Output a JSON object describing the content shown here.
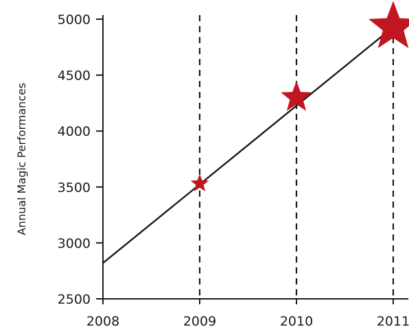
{
  "chart_data": {
    "type": "line",
    "title": "",
    "xlabel": "",
    "ylabel": "Annual Magic Performances",
    "x_ticks": [
      "2008",
      "2009",
      "2010",
      "2011"
    ],
    "y_ticks": [
      "2500",
      "3000",
      "3500",
      "4000",
      "4500",
      "5000"
    ],
    "xlim": [
      2008,
      2011
    ],
    "ylim": [
      2500,
      5000
    ],
    "grid": "dashed vertical lines at 2009, 2010, 2011",
    "series": [
      {
        "x": [
          2008,
          2011
        ],
        "y": [
          2820,
          4930
        ]
      }
    ],
    "markers": [
      {
        "x": 2009,
        "y": 3530,
        "size": "small"
      },
      {
        "x": 2010,
        "y": 4300,
        "size": "medium"
      },
      {
        "x": 2011,
        "y": 4930,
        "size": "large"
      }
    ],
    "colors": {
      "line": "#1a1a1a",
      "marker": "#c0161f",
      "grid": "#1a1a1a"
    }
  }
}
